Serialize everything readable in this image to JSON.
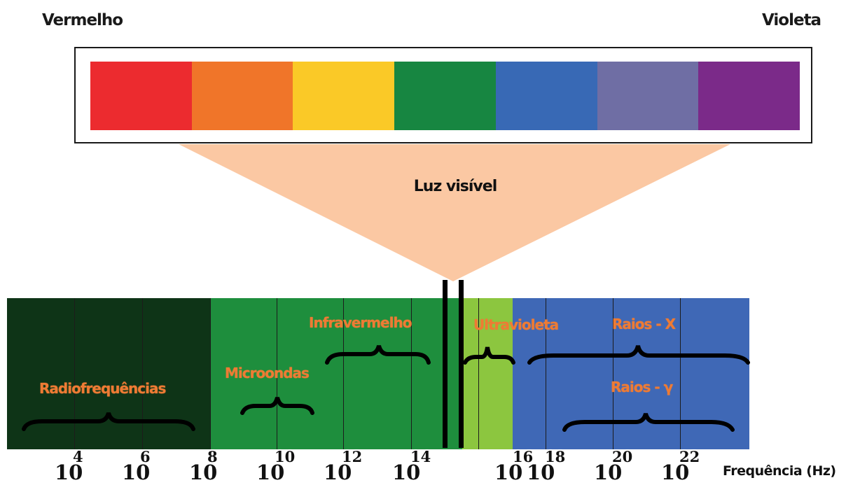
{
  "visible_spectrum": {
    "left_label": "Vermelho",
    "right_label": "Violeta",
    "colors": [
      {
        "name": "red",
        "hex": "#ec2b2f"
      },
      {
        "name": "orange",
        "hex": "#f07529"
      },
      {
        "name": "yellow",
        "hex": "#fac927"
      },
      {
        "name": "green",
        "hex": "#178641"
      },
      {
        "name": "blue",
        "hex": "#3869b5"
      },
      {
        "name": "indigo",
        "hex": "#6f6ea4"
      },
      {
        "name": "violet",
        "hex": "#7b2a89"
      }
    ],
    "zoom_label": "Luz visível",
    "zoom_color": "#fbc8a3"
  },
  "spectrum": {
    "regions": [
      {
        "name": "radio",
        "label": "Radiofrequências",
        "color": "#0e3417"
      },
      {
        "name": "microwave",
        "label": "Microondas",
        "color": "#1e8e3d"
      },
      {
        "name": "infrared",
        "label": "Infravermelho",
        "color": "#1e8e3d"
      },
      {
        "name": "visible",
        "label": "",
        "color": "#8cc63f"
      },
      {
        "name": "ultraviolet",
        "label": "Ultravioleta",
        "color": "#8cc63f"
      },
      {
        "name": "xray",
        "label": "Raios - X",
        "color": "#3f68b6"
      },
      {
        "name": "gamma",
        "label": "Raios - γ",
        "color": "#3f68b6"
      }
    ],
    "ticks": [
      {
        "base": "10",
        "exp": "4"
      },
      {
        "base": "10",
        "exp": "6"
      },
      {
        "base": "10",
        "exp": "8"
      },
      {
        "base": "10",
        "exp": "10"
      },
      {
        "base": "10",
        "exp": "12"
      },
      {
        "base": "10",
        "exp": "14"
      },
      {
        "base": "10",
        "exp": "16"
      },
      {
        "base": "10",
        "exp": "18"
      },
      {
        "base": "10",
        "exp": "20"
      },
      {
        "base": "10",
        "exp": "22"
      }
    ],
    "axis_label": "Frequência (Hz)"
  }
}
